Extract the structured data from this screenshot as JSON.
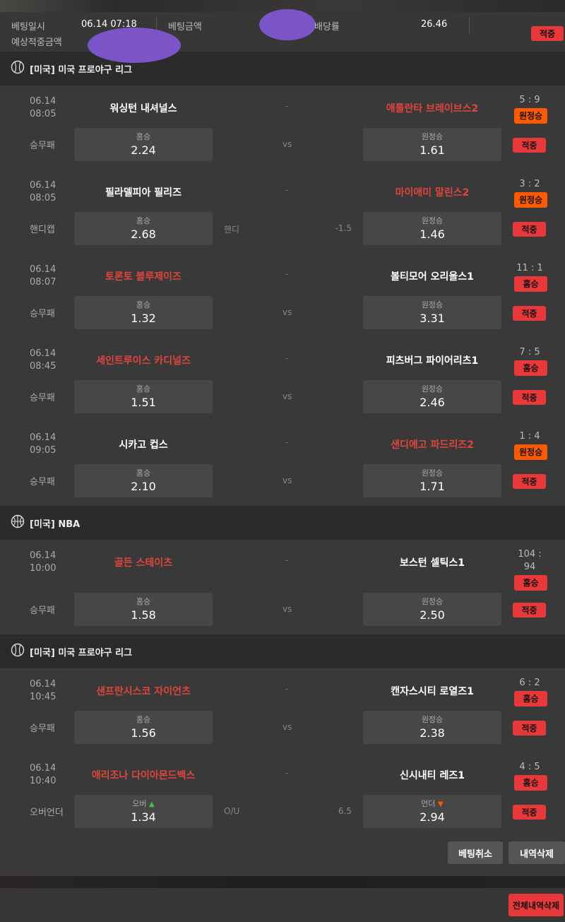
{
  "summary": {
    "date_label": "베팅일시",
    "date_value": "06.14 07:18",
    "amount_label": "베팅금액",
    "odds_label": "배당률",
    "odds_value": "26.46",
    "expected_label": "예상적중금액",
    "status": "적중"
  },
  "sections": [
    {
      "title": "[미국] 미국 프로야구 리그",
      "icon": "baseball-icon",
      "matches": [
        {
          "date": "06.14",
          "time": "08:05",
          "home": "워싱턴 내셔널스",
          "home_red": false,
          "away": "애틀란타 브레이브스2",
          "away_red": true,
          "score": "5 : 9",
          "result": "원정승",
          "result_color": "orange",
          "type": "승무패",
          "home_label": "홈승",
          "home_odds": "2.24",
          "mid_left": "",
          "mid_center": "vs",
          "mid_right": "",
          "away_label": "원정승",
          "away_odds": "1.61",
          "status": "적중"
        },
        {
          "date": "06.14",
          "time": "08:05",
          "home": "필라델피아 필리즈",
          "home_red": false,
          "away": "마이애미 말린스2",
          "away_red": true,
          "score": "3 : 2",
          "result": "원정승",
          "result_color": "orange",
          "type": "핸디캡",
          "home_label": "홈승",
          "home_odds": "2.68",
          "mid_left": "핸디",
          "mid_center": "",
          "mid_right": "-1.5",
          "away_label": "원정승",
          "away_odds": "1.46",
          "status": "적중"
        },
        {
          "date": "06.14",
          "time": "08:07",
          "home": "토론토 블루제이즈",
          "home_red": true,
          "away": "볼티모어 오리올스1",
          "away_red": false,
          "score": "11 : 1",
          "result": "홈승",
          "result_color": "red",
          "type": "승무패",
          "home_label": "홈승",
          "home_odds": "1.32",
          "mid_left": "",
          "mid_center": "vs",
          "mid_right": "",
          "away_label": "원정승",
          "away_odds": "3.31",
          "status": "적중"
        },
        {
          "date": "06.14",
          "time": "08:45",
          "home": "세인트루이스 카디널즈",
          "home_red": true,
          "away": "피츠버그 파이어리츠1",
          "away_red": false,
          "score": "7 : 5",
          "result": "홈승",
          "result_color": "red",
          "type": "승무패",
          "home_label": "홈승",
          "home_odds": "1.51",
          "mid_left": "",
          "mid_center": "vs",
          "mid_right": "",
          "away_label": "원정승",
          "away_odds": "2.46",
          "status": "적중"
        },
        {
          "date": "06.14",
          "time": "09:05",
          "home": "시카고 컵스",
          "home_red": false,
          "away": "샌디에고 파드리즈2",
          "away_red": true,
          "score": "1 : 4",
          "result": "원정승",
          "result_color": "orange",
          "type": "승무패",
          "home_label": "홈승",
          "home_odds": "2.10",
          "mid_left": "",
          "mid_center": "vs",
          "mid_right": "",
          "away_label": "원정승",
          "away_odds": "1.71",
          "status": "적중"
        }
      ]
    },
    {
      "title": "[미국] NBA",
      "icon": "basketball-icon",
      "matches": [
        {
          "date": "06.14",
          "time": "10:00",
          "home": "골든 스테이츠",
          "home_red": true,
          "away": "보스턴 셀틱스1",
          "away_red": false,
          "score": "104 : 94",
          "result": "홈승",
          "result_color": "red",
          "type": "승무패",
          "home_label": "홈승",
          "home_odds": "1.58",
          "mid_left": "",
          "mid_center": "vs",
          "mid_right": "",
          "away_label": "원정승",
          "away_odds": "2.50",
          "status": "적중"
        }
      ]
    },
    {
      "title": "[미국] 미국 프로야구 리그",
      "icon": "baseball-icon",
      "matches": [
        {
          "date": "06.14",
          "time": "10:45",
          "home": "샌프란시스코 자이언츠",
          "home_red": true,
          "away": "캔자스시티 로열즈1",
          "away_red": false,
          "score": "6 : 2",
          "result": "홈승",
          "result_color": "red",
          "type": "승무패",
          "home_label": "홈승",
          "home_odds": "1.56",
          "mid_left": "",
          "mid_center": "vs",
          "mid_right": "",
          "away_label": "원정승",
          "away_odds": "2.38",
          "status": "적중"
        },
        {
          "date": "06.14",
          "time": "10:40",
          "home": "애리조나 다이아몬드백스",
          "home_red": true,
          "away": "신시내티 레즈1",
          "away_red": false,
          "score": "4 : 5",
          "result": "홈승",
          "result_color": "red",
          "type": "오버언더",
          "home_label": "오버",
          "home_arrow": "up",
          "home_odds": "1.34",
          "mid_left": "O/U",
          "mid_center": "",
          "mid_right": "6.5",
          "away_label": "언더",
          "away_arrow": "down",
          "away_odds": "2.94",
          "status": "적중"
        }
      ]
    }
  ],
  "actions": {
    "cancel": "베팅취소",
    "delete": "내역삭제",
    "delete_all": "전체내역삭제"
  },
  "colors": {
    "red_badge": "#e8383a",
    "orange_badge": "#ff5a00",
    "red_text": "#e0443c"
  }
}
